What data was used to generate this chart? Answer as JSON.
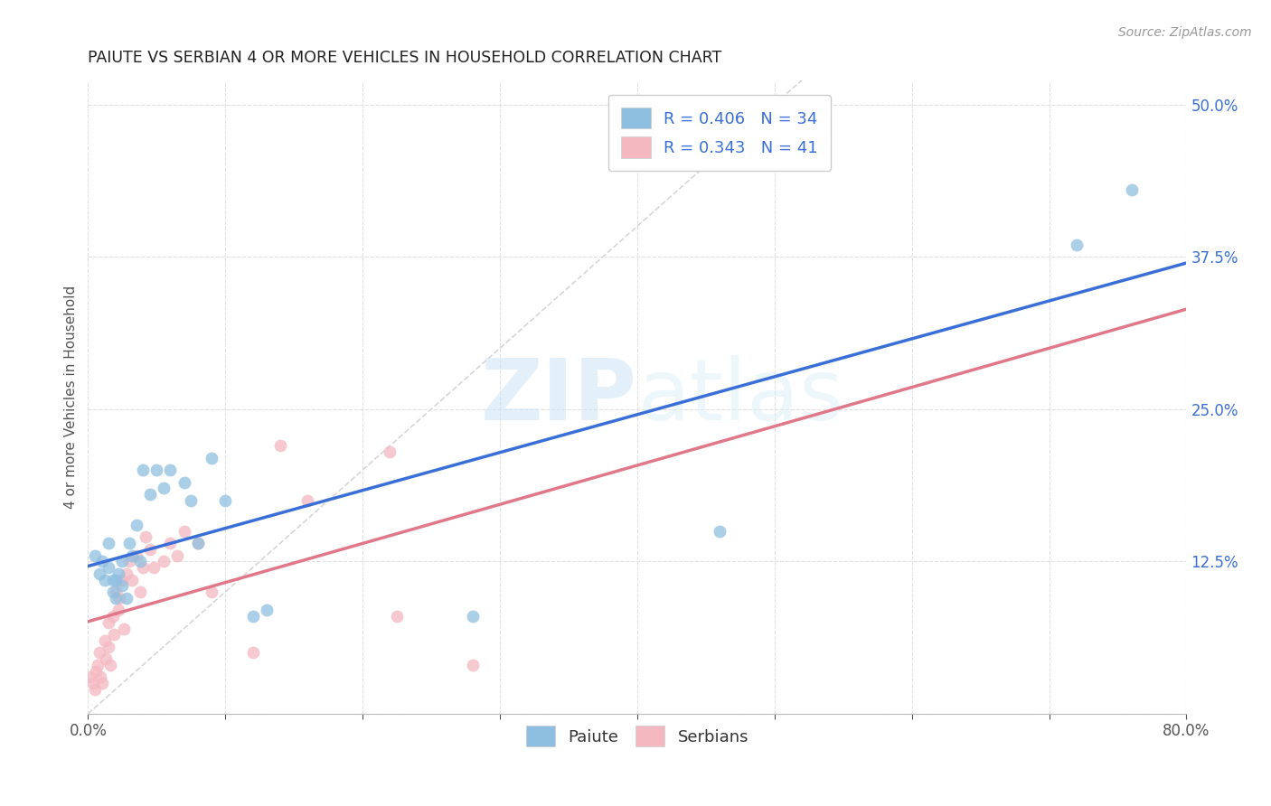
{
  "title": "PAIUTE VS SERBIAN 4 OR MORE VEHICLES IN HOUSEHOLD CORRELATION CHART",
  "source": "Source: ZipAtlas.com",
  "ylabel": "4 or more Vehicles in Household",
  "xlim": [
    0.0,
    0.8
  ],
  "ylim": [
    0.0,
    0.52
  ],
  "xticks": [
    0.0,
    0.1,
    0.2,
    0.3,
    0.4,
    0.5,
    0.6,
    0.7,
    0.8
  ],
  "xticklabels": [
    "0.0%",
    "",
    "",
    "",
    "",
    "",
    "",
    "",
    "80.0%"
  ],
  "yticks": [
    0.0,
    0.125,
    0.25,
    0.375,
    0.5
  ],
  "yticklabels": [
    "",
    "12.5%",
    "25.0%",
    "37.5%",
    "50.0%"
  ],
  "paiute_color": "#8fbfe0",
  "serbian_color": "#f4b8c1",
  "paiute_line_color": "#3a6fd8",
  "serbian_line_color": "#e0788a",
  "diagonal_color": "#cccccc",
  "r_value_color": "#3a6fd8",
  "n_value_color": "#3a6fd8",
  "watermark_color": "#d0e8f5",
  "paiute_x": [
    0.005,
    0.008,
    0.01,
    0.012,
    0.015,
    0.015,
    0.018,
    0.018,
    0.02,
    0.02,
    0.022,
    0.025,
    0.025,
    0.028,
    0.03,
    0.032,
    0.035,
    0.038,
    0.04,
    0.045,
    0.05,
    0.055,
    0.06,
    0.07,
    0.075,
    0.08,
    0.09,
    0.1,
    0.12,
    0.13,
    0.28,
    0.46,
    0.72,
    0.76
  ],
  "paiute_y": [
    0.13,
    0.115,
    0.125,
    0.11,
    0.14,
    0.12,
    0.11,
    0.1,
    0.095,
    0.11,
    0.115,
    0.125,
    0.105,
    0.095,
    0.14,
    0.13,
    0.155,
    0.125,
    0.2,
    0.18,
    0.2,
    0.185,
    0.2,
    0.19,
    0.175,
    0.14,
    0.21,
    0.175,
    0.08,
    0.085,
    0.08,
    0.15,
    0.385,
    0.43
  ],
  "serbian_x": [
    0.002,
    0.004,
    0.005,
    0.006,
    0.007,
    0.008,
    0.009,
    0.01,
    0.012,
    0.013,
    0.015,
    0.015,
    0.016,
    0.018,
    0.019,
    0.02,
    0.022,
    0.023,
    0.025,
    0.026,
    0.028,
    0.03,
    0.032,
    0.035,
    0.038,
    0.04,
    0.042,
    0.045,
    0.048,
    0.055,
    0.06,
    0.065,
    0.07,
    0.08,
    0.09,
    0.12,
    0.14,
    0.16,
    0.22,
    0.225,
    0.28
  ],
  "serbian_y": [
    0.03,
    0.025,
    0.02,
    0.035,
    0.04,
    0.05,
    0.03,
    0.025,
    0.06,
    0.045,
    0.075,
    0.055,
    0.04,
    0.08,
    0.065,
    0.1,
    0.085,
    0.095,
    0.11,
    0.07,
    0.115,
    0.125,
    0.11,
    0.13,
    0.1,
    0.12,
    0.145,
    0.135,
    0.12,
    0.125,
    0.14,
    0.13,
    0.15,
    0.14,
    0.1,
    0.05,
    0.22,
    0.175,
    0.215,
    0.08,
    0.04
  ],
  "background_color": "#ffffff",
  "grid_color": "#e0e0e0"
}
